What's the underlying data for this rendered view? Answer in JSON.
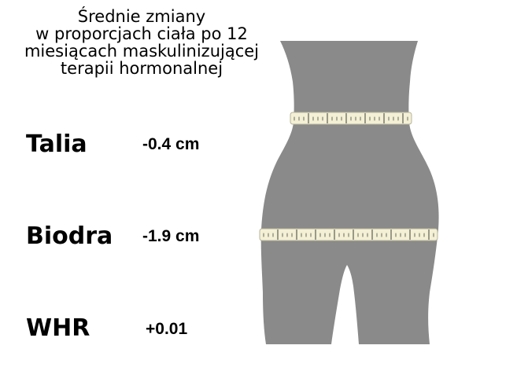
{
  "title": {
    "line1": "Średnie zmiany",
    "line2": "w proporcjach ciała po 12",
    "line3": "miesiącach maskulinizującej",
    "line4": "terapii hormonalnej"
  },
  "measurements": [
    {
      "label": "Talia",
      "value": "-0.4 cm"
    },
    {
      "label": "Biodra",
      "value": "-1.9 cm"
    },
    {
      "label": "WHR",
      "value": "+0.01"
    }
  ],
  "colors": {
    "body": "#8a8a8a",
    "tape_fill": "#f3f0d6",
    "tape_ticks": "#6a6a5a"
  },
  "icons": {
    "figure": "lower-body-silhouette-icon",
    "waist_tape": "measuring-tape-icon",
    "hip_tape": "measuring-tape-icon"
  }
}
